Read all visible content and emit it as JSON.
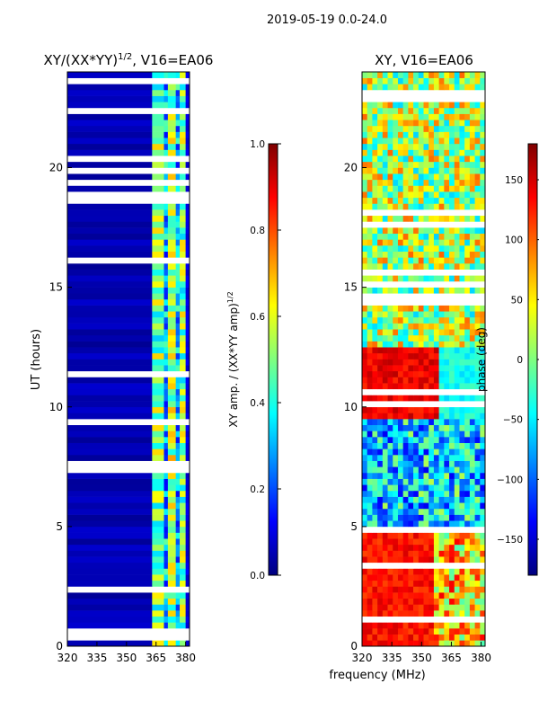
{
  "suptitle": "2019-05-19 0.0-24.0",
  "xlabel_shared": "frequency (MHz)",
  "colormap": [
    "#00007f",
    "#0000ff",
    "#007fff",
    "#00ffff",
    "#7fff7f",
    "#ffff00",
    "#ff7f00",
    "#ff0000",
    "#7f0000"
  ],
  "chart_data": [
    {
      "type": "heatmap",
      "title_prefix": "XY/(XX*YY)",
      "title_exp": "1/2",
      "title_suffix": ", V16=EA06",
      "xlabel": "",
      "ylabel": "UT (hours)",
      "xlim": [
        320,
        382
      ],
      "ylim": [
        0,
        24
      ],
      "xticks": [
        320,
        335,
        350,
        365,
        380
      ],
      "yticks": [
        0,
        5,
        10,
        15,
        20
      ],
      "colorbar": {
        "label_prefix": "XY amp. / (XX*YY amp)",
        "label_exp": "1/2",
        "range": [
          0.0,
          1.0
        ],
        "ticks": [
          "0.0",
          "0.2",
          "0.4",
          "0.6",
          "0.8",
          "1.0"
        ]
      },
      "bands": [
        {
          "fmin": 320,
          "fmax": 363,
          "value": 0.05
        },
        {
          "fmin": 363,
          "fmax": 369,
          "value": 0.5
        },
        {
          "fmin": 369,
          "fmax": 371,
          "value": 0.3
        },
        {
          "fmin": 371,
          "fmax": 375,
          "value": 0.55
        },
        {
          "fmin": 375,
          "fmax": 377,
          "value": 0.3
        },
        {
          "fmin": 377,
          "fmax": 380,
          "value": 0.5
        },
        {
          "fmin": 380,
          "fmax": 382,
          "value": 0.1
        }
      ]
    },
    {
      "type": "heatmap",
      "title": "XY, V16=EA06",
      "xlabel": "",
      "ylabel": "",
      "xlim": [
        320,
        382
      ],
      "ylim": [
        0,
        24
      ],
      "xticks": [
        320,
        335,
        350,
        365,
        380
      ],
      "yticks": [
        0,
        5,
        10,
        15,
        20
      ],
      "colorbar": {
        "label": "phase (deg)",
        "range": [
          -180,
          180
        ],
        "ticks": [
          "−150",
          "−100",
          "−50",
          "0",
          "50",
          "100",
          "150"
        ]
      },
      "regions": [
        {
          "t0": 0,
          "t1": 5,
          "fmin": 320,
          "fmax": 357,
          "value": 130
        },
        {
          "t0": 0,
          "t1": 5,
          "fmin": 357,
          "fmax": 382,
          "value": 60
        },
        {
          "t0": 9.5,
          "t1": 12.5,
          "fmin": 320,
          "fmax": 359,
          "value": 140
        },
        {
          "t0": 9.5,
          "t1": 12.5,
          "fmin": 359,
          "fmax": 382,
          "value": -40
        },
        {
          "t0": 5,
          "t1": 9.5,
          "fmin": 320,
          "fmax": 382,
          "value": -60
        },
        {
          "t0": 12.5,
          "t1": 24,
          "fmin": 320,
          "fmax": 382,
          "value": 20
        }
      ]
    }
  ]
}
